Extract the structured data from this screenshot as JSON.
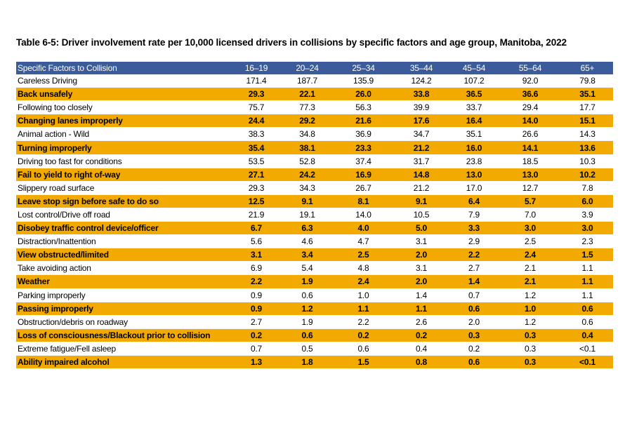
{
  "title": "Table 6-5: Driver involvement rate per 10,000 licensed drivers in collisions by specific factors and age group, Manitoba, 2022",
  "colors": {
    "header": "#3b5b9b",
    "highlight": "#f2aa00"
  },
  "table": {
    "headers": [
      "Specific Factors to Collision",
      "16–19",
      "20–24",
      "25–34",
      "35–44",
      "45–54",
      "55–64",
      "65+"
    ],
    "rows": [
      [
        "Careless Driving",
        "171.4",
        "187.7",
        "135.9",
        "124.2",
        "107.2",
        "92.0",
        "79.8"
      ],
      [
        "Back unsafely",
        "29.3",
        "22.1",
        "26.0",
        "33.8",
        "36.5",
        "36.6",
        "35.1"
      ],
      [
        "Following too closely",
        "75.7",
        "77.3",
        "56.3",
        "39.9",
        "33.7",
        "29.4",
        "17.7"
      ],
      [
        "Changing lanes improperly",
        "24.4",
        "29.2",
        "21.6",
        "17.6",
        "16.4",
        "14.0",
        "15.1"
      ],
      [
        "Animal action - Wild",
        "38.3",
        "34.8",
        "36.9",
        "34.7",
        "35.1",
        "26.6",
        "14.3"
      ],
      [
        "Turning improperly",
        "35.4",
        "38.1",
        "23.3",
        "21.2",
        "16.0",
        "14.1",
        "13.6"
      ],
      [
        "Driving too fast for conditions",
        "53.5",
        "52.8",
        "37.4",
        "31.7",
        "23.8",
        "18.5",
        "10.3"
      ],
      [
        "Fail to yield to right of-way",
        "27.1",
        "24.2",
        "16.9",
        "14.8",
        "13.0",
        "13.0",
        "10.2"
      ],
      [
        "Slippery road surface",
        "29.3",
        "34.3",
        "26.7",
        "21.2",
        "17.0",
        "12.7",
        "7.8"
      ],
      [
        "Leave stop sign before safe to do so",
        "12.5",
        "9.1",
        "8.1",
        "9.1",
        "6.4",
        "5.7",
        "6.0"
      ],
      [
        "Lost control/Drive off road",
        "21.9",
        "19.1",
        "14.0",
        "10.5",
        "7.9",
        "7.0",
        "3.9"
      ],
      [
        "Disobey traffic control device/officer",
        "6.7",
        "6.3",
        "4.0",
        "5.0",
        "3.3",
        "3.0",
        "3.0"
      ],
      [
        "Distraction/Inattention",
        "5.6",
        "4.6",
        "4.7",
        "3.1",
        "2.9",
        "2.5",
        "2.3"
      ],
      [
        "View obstructed/limited",
        "3.1",
        "3.4",
        "2.5",
        "2.0",
        "2.2",
        "2.4",
        "1.5"
      ],
      [
        "Take avoiding action",
        "6.9",
        "5.4",
        "4.8",
        "3.1",
        "2.7",
        "2.1",
        "1.1"
      ],
      [
        "Weather",
        "2.2",
        "1.9",
        "2.4",
        "2.0",
        "1.4",
        "2.1",
        "1.1"
      ],
      [
        "Parking improperly",
        "0.9",
        "0.6",
        "1.0",
        "1.4",
        "0.7",
        "1.2",
        "1.1"
      ],
      [
        "Passing improperly",
        "0.9",
        "1.2",
        "1.1",
        "1.1",
        "0.6",
        "1.0",
        "0.6"
      ],
      [
        "Obstruction/debris on roadway",
        "2.7",
        "1.9",
        "2.2",
        "2.6",
        "2.0",
        "1.2",
        "0.6"
      ],
      [
        "Loss of consciousness/Blackout prior to collision",
        "0.2",
        "0.6",
        "0.2",
        "0.2",
        "0.3",
        "0.3",
        "0.4"
      ],
      [
        "Extreme fatigue/Fell asleep",
        "0.7",
        "0.5",
        "0.6",
        "0.4",
        "0.2",
        "0.3",
        "<0.1"
      ],
      [
        "Ability impaired alcohol",
        "1.3",
        "1.8",
        "1.5",
        "0.8",
        "0.6",
        "0.3",
        "<0.1"
      ]
    ]
  }
}
